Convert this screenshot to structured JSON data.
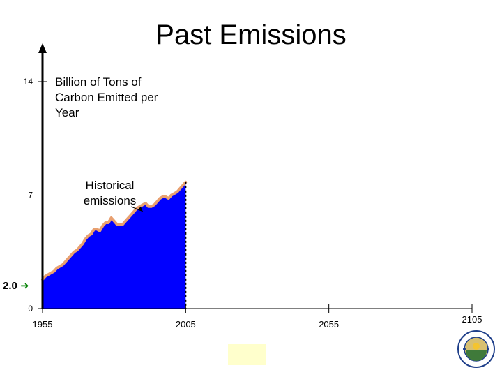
{
  "chart_data": {
    "type": "area",
    "title": "Past Emissions",
    "ylabel": "Billion of Tons of Carbon Emitted per Year",
    "xlabel": "",
    "xlim": [
      1955,
      2105
    ],
    "ylim": [
      0,
      14
    ],
    "x_ticks": [
      1955,
      2005,
      2055,
      2105
    ],
    "y_ticks": [
      0,
      7,
      14
    ],
    "baseline_marker": {
      "label": "2.0",
      "value": 2.0
    },
    "annotation": {
      "text": "Historical emissions",
      "x": 1990,
      "y": 6.0
    },
    "grid": false,
    "series": [
      {
        "fill_color": "#0000ff",
        "line_color": "#e8a070",
        "x": [
          1955,
          1956,
          1957,
          1958,
          1959,
          1960,
          1961,
          1962,
          1963,
          1964,
          1965,
          1966,
          1967,
          1968,
          1969,
          1970,
          1971,
          1972,
          1973,
          1974,
          1975,
          1976,
          1977,
          1978,
          1979,
          1980,
          1981,
          1982,
          1983,
          1984,
          1985,
          1986,
          1987,
          1988,
          1989,
          1990,
          1991,
          1992,
          1993,
          1994,
          1995,
          1996,
          1997,
          1998,
          1999,
          2000,
          2001,
          2002,
          2003,
          2004,
          2005
        ],
        "values": [
          1.8,
          2.0,
          2.1,
          2.2,
          2.3,
          2.5,
          2.6,
          2.7,
          2.9,
          3.1,
          3.3,
          3.5,
          3.6,
          3.8,
          4.0,
          4.3,
          4.5,
          4.6,
          4.9,
          4.9,
          4.8,
          5.1,
          5.3,
          5.3,
          5.6,
          5.4,
          5.2,
          5.2,
          5.2,
          5.4,
          5.6,
          5.8,
          6.0,
          6.2,
          6.3,
          6.4,
          6.5,
          6.3,
          6.3,
          6.4,
          6.6,
          6.8,
          6.9,
          6.9,
          6.8,
          7.0,
          7.1,
          7.2,
          7.4,
          7.6,
          7.8
        ]
      }
    ]
  },
  "logo": {
    "name": "Carbon Mitigation Initiative"
  }
}
